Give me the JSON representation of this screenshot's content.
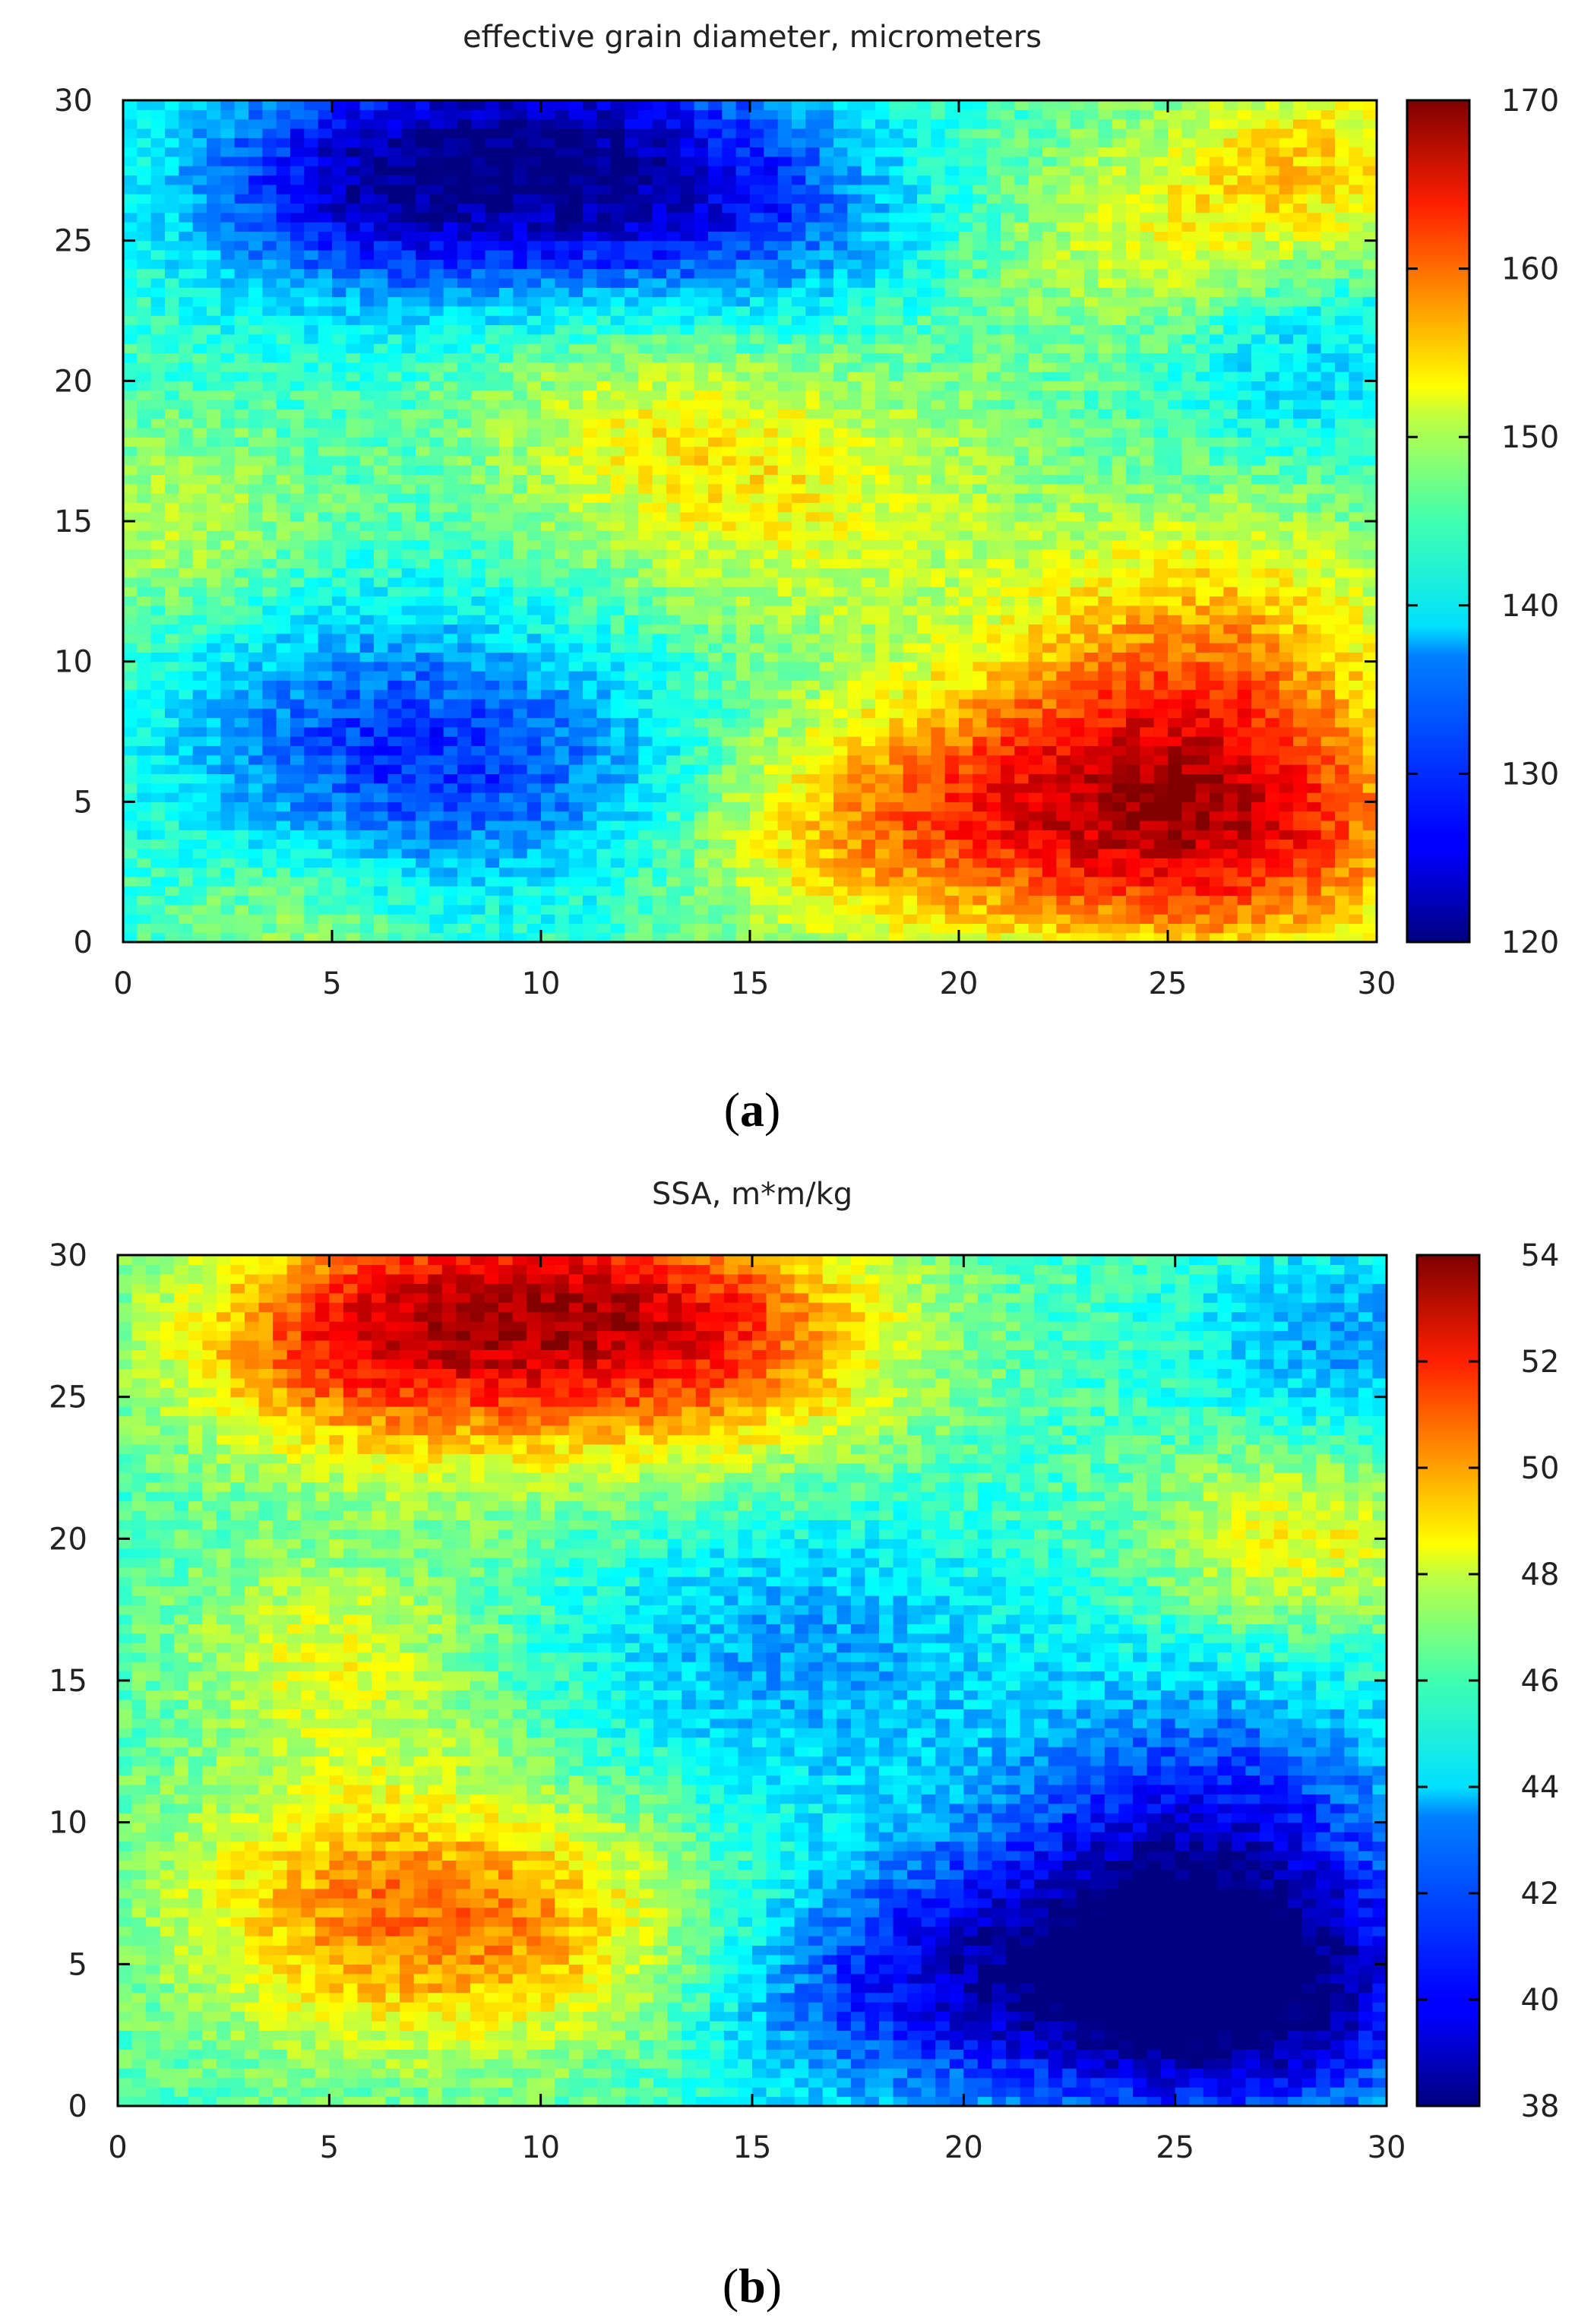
{
  "panels": [
    {
      "caption": "(a)",
      "caption_letter": "a",
      "chart_data": {
        "type": "heatmap",
        "title": "effective grain diameter, micrometers",
        "xlabel": "",
        "ylabel": "",
        "xlim": [
          0,
          30
        ],
        "ylim": [
          0,
          30
        ],
        "x_ticks": [
          "0",
          "5",
          "10",
          "15",
          "20",
          "25",
          "30"
        ],
        "y_ticks": [
          "0",
          "5",
          "10",
          "15",
          "20",
          "25",
          "30"
        ],
        "colorbar": {
          "range": [
            120,
            170
          ],
          "ticks": [
            "120",
            "130",
            "140",
            "150",
            "160",
            "170"
          ]
        },
        "grid": false,
        "colormap": "jet",
        "grid_size": [
          30,
          30
        ],
        "z_blobs": [
          {
            "x": 10,
            "y": 28,
            "amplitude": -18,
            "spread": 3.5
          },
          {
            "x": 5,
            "y": 27,
            "amplitude": -12,
            "spread": 3
          },
          {
            "x": 15,
            "y": 26,
            "amplitude": -10,
            "spread": 3
          },
          {
            "x": 6,
            "y": 7,
            "amplitude": -12,
            "spread": 3.5
          },
          {
            "x": 11,
            "y": 6,
            "amplitude": -6,
            "spread": 3
          },
          {
            "x": 28,
            "y": 21,
            "amplitude": -7,
            "spread": 2.5
          },
          {
            "x": 27,
            "y": 4,
            "amplitude": 18,
            "spread": 3.5
          },
          {
            "x": 22,
            "y": 5,
            "amplitude": 14,
            "spread": 3.5
          },
          {
            "x": 26,
            "y": 11,
            "amplitude": 11,
            "spread": 3.5
          },
          {
            "x": 17,
            "y": 4,
            "amplitude": 9,
            "spread": 3
          },
          {
            "x": 16,
            "y": 16,
            "amplitude": 8,
            "spread": 3.5
          },
          {
            "x": 12,
            "y": 19,
            "amplitude": 6,
            "spread": 3
          },
          {
            "x": 25,
            "y": 25,
            "amplitude": 8,
            "spread": 3
          },
          {
            "x": 29,
            "y": 28,
            "amplitude": 9,
            "spread": 2.5
          },
          {
            "x": 1,
            "y": 15,
            "amplitude": 6,
            "spread": 2.5
          },
          {
            "x": 4,
            "y": 1,
            "amplitude": 5,
            "spread": 2
          }
        ],
        "z_base": 142
      }
    },
    {
      "caption": "(b)",
      "caption_letter": "b",
      "chart_data": {
        "type": "heatmap",
        "title": "SSA, m*m/kg",
        "xlabel": "",
        "ylabel": "",
        "xlim": [
          0,
          30
        ],
        "ylim": [
          0,
          30
        ],
        "x_ticks": [
          "0",
          "5",
          "10",
          "15",
          "20",
          "25",
          "30"
        ],
        "y_ticks": [
          "0",
          "5",
          "10",
          "15",
          "20",
          "25",
          "30"
        ],
        "colorbar": {
          "range": [
            38,
            54
          ],
          "ticks": [
            "38",
            "40",
            "42",
            "44",
            "46",
            "48",
            "50",
            "52",
            "54"
          ]
        },
        "grid": false,
        "colormap": "jet",
        "grid_size": [
          30,
          30
        ],
        "z_blobs": [
          {
            "x": 10,
            "y": 28,
            "amplitude": 6.5,
            "spread": 3.5
          },
          {
            "x": 5,
            "y": 27,
            "amplitude": 4.5,
            "spread": 3
          },
          {
            "x": 15,
            "y": 27,
            "amplitude": 4,
            "spread": 3
          },
          {
            "x": 6,
            "y": 7,
            "amplitude": 4.5,
            "spread": 3.5
          },
          {
            "x": 11,
            "y": 6,
            "amplitude": 2.5,
            "spread": 3
          },
          {
            "x": 28,
            "y": 20,
            "amplitude": 3,
            "spread": 2.5
          },
          {
            "x": 5,
            "y": 16,
            "amplitude": 2.5,
            "spread": 2.5
          },
          {
            "x": 27,
            "y": 4,
            "amplitude": -6.5,
            "spread": 3.5
          },
          {
            "x": 22,
            "y": 5,
            "amplitude": -4.5,
            "spread": 3.5
          },
          {
            "x": 26,
            "y": 11,
            "amplitude": -3.5,
            "spread": 3.5
          },
          {
            "x": 17,
            "y": 4,
            "amplitude": -2.5,
            "spread": 3
          },
          {
            "x": 16,
            "y": 16,
            "amplitude": -2.5,
            "spread": 3.5
          },
          {
            "x": 29,
            "y": 27,
            "amplitude": -2.5,
            "spread": 2.5
          }
        ],
        "z_base": 45
      }
    }
  ]
}
